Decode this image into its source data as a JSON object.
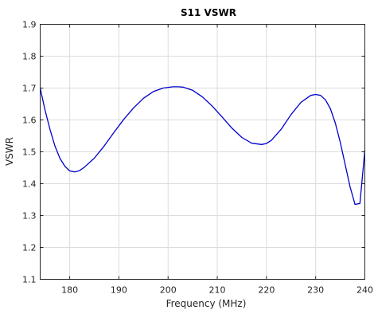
{
  "chart_data": {
    "type": "line",
    "title": "S11 VSWR",
    "xlabel": "Frequency (MHz)",
    "ylabel": "VSWR",
    "xlim": [
      174,
      240
    ],
    "ylim": [
      1.1,
      1.9
    ],
    "xticks": [
      180,
      190,
      200,
      210,
      220,
      230,
      240
    ],
    "yticks": [
      1.1,
      1.2,
      1.3,
      1.4,
      1.5,
      1.6,
      1.7,
      1.8,
      1.9
    ],
    "xtick_labels": [
      "180",
      "190",
      "200",
      "210",
      "220",
      "230",
      "240"
    ],
    "ytick_labels": [
      "1.1",
      "1.2",
      "1.3",
      "1.4",
      "1.5",
      "1.6",
      "1.7",
      "1.8",
      "1.9"
    ],
    "grid": true,
    "series": [
      {
        "color": "#0000cd",
        "x": [
          174,
          175,
          176,
          177,
          178,
          179,
          180,
          181,
          182,
          183,
          185,
          187,
          189,
          191,
          193,
          195,
          197,
          199,
          201,
          202,
          203,
          205,
          207,
          209,
          211,
          213,
          215,
          217,
          219,
          220,
          221,
          223,
          225,
          227,
          229,
          230,
          231,
          232,
          233,
          234,
          235,
          236,
          237,
          238,
          239,
          240
        ],
        "y": [
          1.7,
          1.63,
          1.57,
          1.518,
          1.48,
          1.455,
          1.44,
          1.437,
          1.441,
          1.452,
          1.48,
          1.518,
          1.561,
          1.602,
          1.638,
          1.668,
          1.689,
          1.7,
          1.704,
          1.704,
          1.703,
          1.693,
          1.672,
          1.643,
          1.609,
          1.574,
          1.545,
          1.527,
          1.523,
          1.526,
          1.536,
          1.571,
          1.617,
          1.655,
          1.677,
          1.68,
          1.677,
          1.663,
          1.635,
          1.59,
          1.53,
          1.46,
          1.39,
          1.335,
          1.338,
          1.505
        ]
      }
    ]
  }
}
